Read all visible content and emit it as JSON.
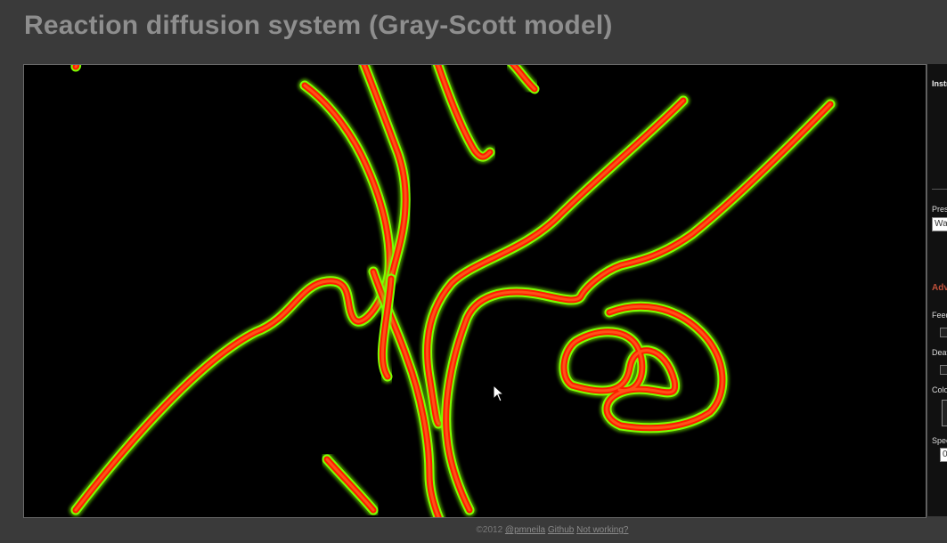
{
  "page": {
    "title": "Reaction diffusion system (Gray-Scott model)"
  },
  "panel": {
    "instructions_heading": "Instructions",
    "preset_label": "Presets:",
    "preset_value": "Warning",
    "advanced_label": "Advanced options",
    "feed_label": "Feed rate:",
    "death_label": "Death rate:",
    "color_label": "Colors:",
    "speed_label": "Speed:",
    "speed_value": "0"
  },
  "footer": {
    "copyright": "©2012",
    "author_link": "@pmneila",
    "github_link": "Github",
    "notworking_link": "Not working?"
  },
  "colors": {
    "background": "#3a3a3a",
    "canvas": "#000000",
    "core": "#ff1a00",
    "edge": "#7cff00"
  }
}
